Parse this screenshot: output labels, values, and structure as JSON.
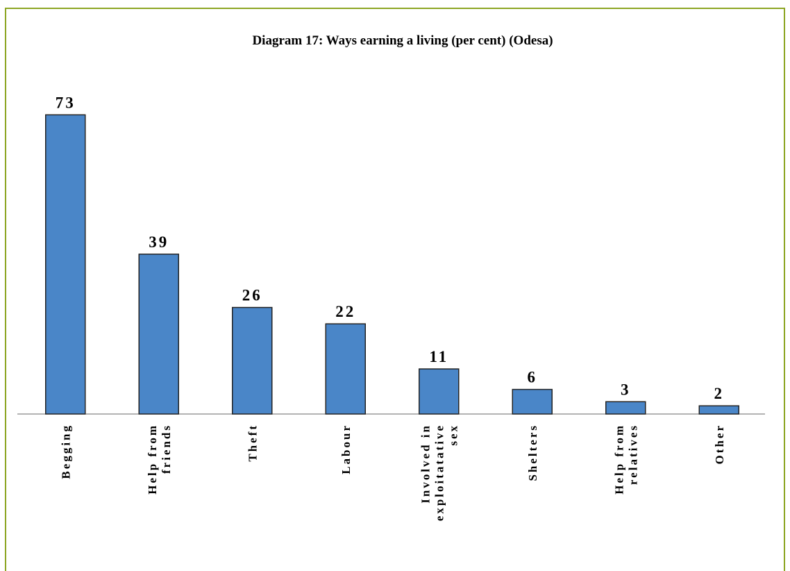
{
  "chart_data": {
    "type": "bar",
    "title": "Diagram 17: Ways earning a living (per cent)  (Odesa)",
    "categories": [
      "Begging",
      "Help from friends",
      "Theft",
      "Labour",
      "Involved in exploitatative sex",
      "Shelters",
      "Help from relatives",
      "Other"
    ],
    "values": [
      73,
      39,
      26,
      22,
      11,
      6,
      3,
      2
    ],
    "color": "#4a86c8"
  }
}
